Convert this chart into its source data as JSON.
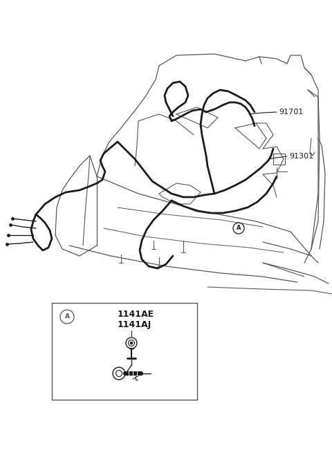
{
  "bg_color": "#ffffff",
  "line_color": "#1a1a1a",
  "thin_color": "#555555",
  "label_91701": "91701",
  "label_91301": "91301",
  "label_1141AE": "1141AE",
  "label_1141AJ": "1141AJ",
  "label_A": "A",
  "fig_width": 4.8,
  "fig_height": 6.55,
  "dpi": 100
}
